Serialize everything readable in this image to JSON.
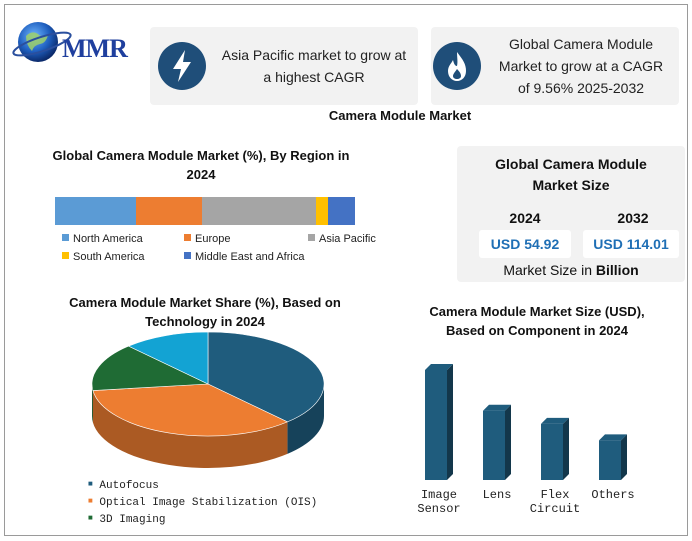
{
  "brand": {
    "name": "MMR"
  },
  "cards": [
    {
      "text_lines": [
        "Asia Pacific market to grow at",
        "a highest CAGR"
      ],
      "icon": "lightning-icon",
      "icon_color": "#1f4e79"
    },
    {
      "text_lines": [
        "Global Camera Module",
        "Market to grow at a CAGR",
        "of 9.56% 2025-2032"
      ],
      "icon": "flame-icon",
      "icon_color": "#1f4e79"
    }
  ],
  "page_title": "Camera Module Market",
  "market_size": {
    "title_lines": [
      "Global Camera Module",
      "Market Size"
    ],
    "years": [
      "2024",
      "2032"
    ],
    "values": [
      "USD 54.92",
      "USD 114.01"
    ],
    "footer_prefix": "Market Size in ",
    "footer_bold": "Billion"
  },
  "chart_data": [
    {
      "type": "bar",
      "stacked": true,
      "orientation": "horizontal",
      "title_lines": [
        "Global Camera Module Market (%), By Region in",
        "2024"
      ],
      "series": [
        {
          "name": "North America",
          "value": 27,
          "color": "#5b9bd5"
        },
        {
          "name": "Europe",
          "value": 22,
          "color": "#ed7d31"
        },
        {
          "name": "Asia Pacific",
          "value": 38,
          "color": "#a5a5a5"
        },
        {
          "name": "South America",
          "value": 4,
          "color": "#ffc000"
        },
        {
          "name": "Middle East and Africa",
          "value": 9,
          "color": "#4472c4"
        }
      ],
      "legend_rows": [
        [
          "North America",
          "Europe",
          "Asia Pacific"
        ],
        [
          "South America",
          "Middle East and Africa"
        ]
      ]
    },
    {
      "type": "pie",
      "style": "3d",
      "title_lines": [
        "Camera Module Market Share (%), Based on",
        "Technology in 2024"
      ],
      "slices": [
        {
          "name": "Autofocus",
          "value": 38,
          "color": "#1f5c7d"
        },
        {
          "name": "Optical Image Stabilization (OIS)",
          "value": 35,
          "color": "#ed7d31"
        },
        {
          "name": "3D Imaging",
          "value": 15,
          "color": "#1f6b34"
        },
        {
          "name": "",
          "value": 12,
          "color": "#13a3d3"
        }
      ],
      "legend": [
        "Autofocus",
        "Optical Image Stabilization (OIS)",
        "3D Imaging"
      ],
      "legend_colors": [
        "#1f5c7d",
        "#ed7d31",
        "#1f6b34"
      ]
    },
    {
      "type": "bar",
      "style": "3d",
      "title_lines": [
        "Camera Module Market Size (USD),",
        "Based on Component in 2024"
      ],
      "categories": [
        [
          "Image",
          "Sensor"
        ],
        [
          "Lens"
        ],
        [
          "Flex",
          "Circuit"
        ],
        [
          "Others"
        ]
      ],
      "values": [
        100,
        63,
        51,
        36
      ],
      "color": "#1f5c7d",
      "ylim": [
        0,
        100
      ]
    }
  ]
}
